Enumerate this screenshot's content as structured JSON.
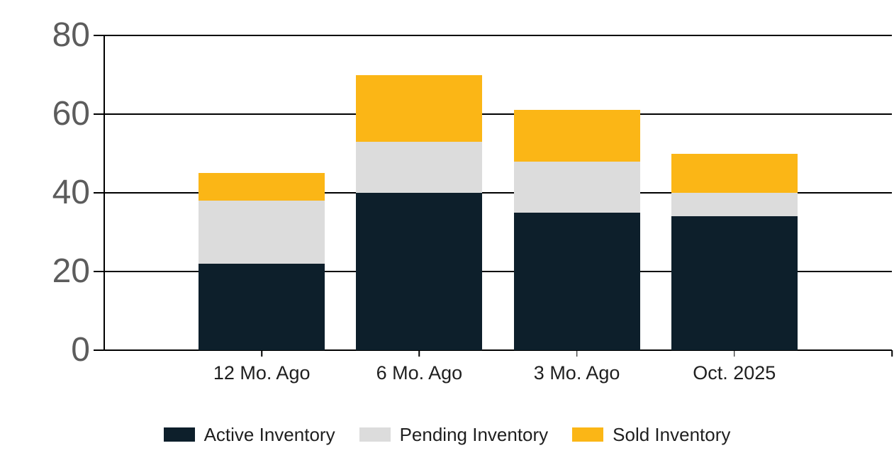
{
  "chart_data": {
    "type": "bar",
    "stacked": true,
    "title": "",
    "xlabel": "",
    "ylabel": "",
    "categories": [
      "12 Mo. Ago",
      "6 Mo. Ago",
      "3 Mo. Ago",
      "Oct. 2025"
    ],
    "series": [
      {
        "name": "Active Inventory",
        "color": "#0d1f2b",
        "values": [
          22,
          40,
          35,
          34
        ]
      },
      {
        "name": "Pending Inventory",
        "color": "#dcdcdc",
        "values": [
          16,
          13,
          13,
          6
        ]
      },
      {
        "name": "Sold Inventory",
        "color": "#fbb616",
        "values": [
          7,
          17,
          13,
          10
        ]
      }
    ],
    "stack_totals": [
      45,
      70,
      61,
      50
    ],
    "ylim": [
      0,
      80
    ],
    "yticks": [
      0,
      20,
      40,
      60,
      80
    ],
    "grid": true,
    "gridline_color": "#000000",
    "axis_label_color": "#5c5c5c",
    "category_label_color": "#1f1f1f",
    "legend_position": "bottom"
  }
}
